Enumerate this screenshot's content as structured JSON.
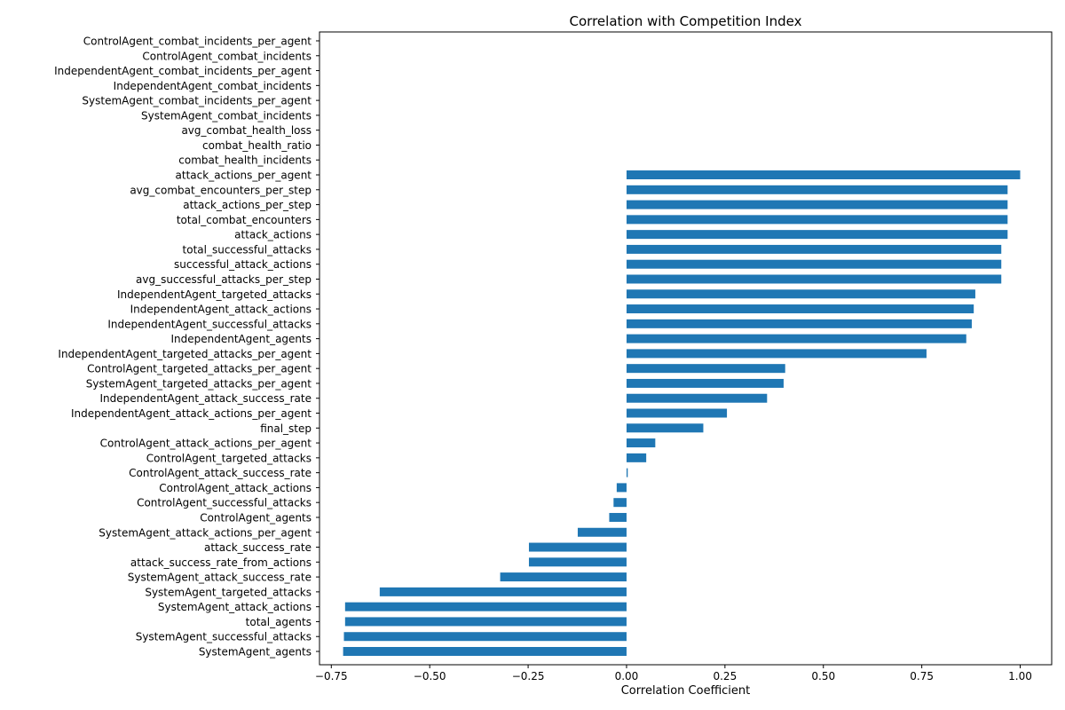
{
  "chart_data": {
    "type": "bar",
    "orientation": "horizontal",
    "title": "Correlation with Competition Index",
    "xlabel": "Correlation Coefficient",
    "ylabel": "",
    "xlim": [
      -0.78,
      1.08
    ],
    "xticks": [
      -0.75,
      -0.5,
      -0.25,
      0.0,
      0.25,
      0.5,
      0.75,
      1.0
    ],
    "xtick_labels": [
      "−0.75",
      "−0.50",
      "−0.25",
      "0.00",
      "0.25",
      "0.50",
      "0.75",
      "1.00"
    ],
    "grid": false,
    "bar_color": "#1f77b4",
    "categories": [
      "ControlAgent_combat_incidents_per_agent",
      "ControlAgent_combat_incidents",
      "IndependentAgent_combat_incidents_per_agent",
      "IndependentAgent_combat_incidents",
      "SystemAgent_combat_incidents_per_agent",
      "SystemAgent_combat_incidents",
      "avg_combat_health_loss",
      "combat_health_ratio",
      "combat_health_incidents",
      "attack_actions_per_agent",
      "avg_combat_encounters_per_step",
      "attack_actions_per_step",
      "total_combat_encounters",
      "attack_actions",
      "total_successful_attacks",
      "successful_attack_actions",
      "avg_successful_attacks_per_step",
      "IndependentAgent_targeted_attacks",
      "IndependentAgent_attack_actions",
      "IndependentAgent_successful_attacks",
      "IndependentAgent_agents",
      "IndependentAgent_targeted_attacks_per_agent",
      "ControlAgent_targeted_attacks_per_agent",
      "SystemAgent_targeted_attacks_per_agent",
      "IndependentAgent_attack_success_rate",
      "IndependentAgent_attack_actions_per_agent",
      "final_step",
      "ControlAgent_attack_actions_per_agent",
      "ControlAgent_targeted_attacks",
      "ControlAgent_attack_success_rate",
      "ControlAgent_attack_actions",
      "ControlAgent_successful_attacks",
      "ControlAgent_agents",
      "SystemAgent_attack_actions_per_agent",
      "attack_success_rate",
      "attack_success_rate_from_actions",
      "SystemAgent_attack_success_rate",
      "SystemAgent_targeted_attacks",
      "SystemAgent_attack_actions",
      "total_agents",
      "SystemAgent_successful_attacks",
      "SystemAgent_agents"
    ],
    "values": [
      null,
      null,
      null,
      null,
      null,
      null,
      null,
      null,
      null,
      1.0,
      0.968,
      0.968,
      0.968,
      0.968,
      0.952,
      0.952,
      0.952,
      0.886,
      0.882,
      0.877,
      0.863,
      0.762,
      0.403,
      0.399,
      0.357,
      0.255,
      0.195,
      0.073,
      0.05,
      0.003,
      -0.025,
      -0.033,
      -0.044,
      -0.124,
      -0.248,
      -0.248,
      -0.321,
      -0.627,
      -0.715,
      -0.715,
      -0.718,
      -0.72
    ]
  }
}
